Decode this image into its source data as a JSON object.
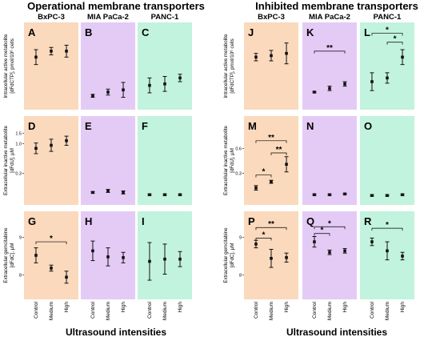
{
  "colors": {
    "bxpc3": "#fbd9bd",
    "mia": "#e4cbf5",
    "panc1": "#c2f3de",
    "point": "#111111"
  },
  "figure_titles": [
    "Operational membrane transporters",
    "Inhibited membrane transporters"
  ],
  "cell_lines": [
    "BxPC-3",
    "MIA PaCa-2",
    "PANC-1"
  ],
  "x_categories": [
    "Control",
    "Medium",
    "High"
  ],
  "x_title": "Ultrasound intensities",
  "row_labels": {
    "tp": {
      "l1": "Intracellular active metabolite",
      "l2": "[dFdCTP], pmol/10⁶ cells"
    },
    "u": {
      "l1": "Extracellular inactive metabolite",
      "l2": "[dFdU], µM"
    },
    "c": {
      "l1": "Extracellular gemcitabine",
      "l2": "[dFdC], µM"
    }
  },
  "chart_data": [
    {
      "group": "Operational membrane transporters",
      "rows": [
        {
          "key": "tp",
          "ticks": [],
          "panels": [
            {
              "letter": "A",
              "line": "BxPC-3",
              "type": "scatter",
              "values": [
                0.62,
                0.7,
                0.7
              ],
              "err_low": [
                0.1,
                0.05,
                0.08
              ],
              "err_high": [
                0.1,
                0.05,
                0.08
              ],
              "sig": []
            },
            {
              "letter": "B",
              "line": "MIA PaCa-2",
              "type": "scatter",
              "values": [
                0.1,
                0.15,
                0.18
              ],
              "err_low": [
                0.02,
                0.04,
                0.1
              ],
              "err_high": [
                0.02,
                0.04,
                0.1
              ],
              "sig": []
            },
            {
              "letter": "C",
              "line": "PANC-1",
              "type": "scatter",
              "values": [
                0.24,
                0.26,
                0.34
              ],
              "err_low": [
                0.1,
                0.1,
                0.05
              ],
              "err_high": [
                0.1,
                0.1,
                0.05
              ],
              "sig": []
            }
          ]
        },
        {
          "key": "u",
          "ticks": [
            {
              "v": 0.86,
              "label": "1.5"
            },
            {
              "v": 0.72,
              "label": "1.0"
            },
            {
              "v": 0.33,
              "label": "0.3"
            }
          ],
          "panels": [
            {
              "letter": "D",
              "line": "BxPC-3",
              "type": "scatter",
              "values": [
                0.66,
                0.7,
                0.76
              ],
              "err_low": [
                0.07,
                0.08,
                0.06
              ],
              "err_high": [
                0.07,
                0.08,
                0.06
              ],
              "sig": []
            },
            {
              "letter": "E",
              "line": "MIA PaCa-2",
              "type": "scatter",
              "values": [
                0.08,
                0.1,
                0.08
              ],
              "err_low": [
                0.01,
                0.02,
                0.02
              ],
              "err_high": [
                0.01,
                0.02,
                0.02
              ],
              "sig": []
            },
            {
              "letter": "F",
              "line": "PANC-1",
              "type": "scatter",
              "values": [
                0.05,
                0.05,
                0.05
              ],
              "err_low": [
                0.01,
                0.01,
                0.01
              ],
              "err_high": [
                0.01,
                0.01,
                0.01
              ],
              "sig": []
            }
          ]
        },
        {
          "key": "c",
          "ticks": [
            {
              "v": 0.74,
              "label": "9"
            },
            {
              "v": 0.24,
              "label": "8"
            }
          ],
          "panels": [
            {
              "letter": "G",
              "line": "BxPC-3",
              "type": "scatter",
              "values": [
                0.5,
                0.33,
                0.21
              ],
              "err_low": [
                0.1,
                0.04,
                0.08
              ],
              "err_high": [
                0.1,
                0.04,
                0.08
              ],
              "sig": [
                {
                  "a": 0,
                  "b": 2,
                  "label": "*",
                  "y": 0.68
                }
              ]
            },
            {
              "letter": "H",
              "line": "MIA PaCa-2",
              "type": "scatter",
              "values": [
                0.56,
                0.48,
                0.47
              ],
              "err_low": [
                0.13,
                0.12,
                0.07
              ],
              "err_high": [
                0.13,
                0.12,
                0.07
              ],
              "sig": []
            },
            {
              "letter": "I",
              "line": "PANC-1",
              "type": "scatter",
              "values": [
                0.42,
                0.45,
                0.45
              ],
              "err_low": [
                0.25,
                0.2,
                0.1
              ],
              "err_high": [
                0.25,
                0.2,
                0.1
              ],
              "sig": []
            }
          ]
        }
      ]
    },
    {
      "group": "Inhibited membrane transporters",
      "rows": [
        {
          "key": "tp",
          "ticks": [],
          "panels": [
            {
              "letter": "J",
              "line": "BxPC-3",
              "type": "scatter",
              "values": [
                0.62,
                0.64,
                0.67
              ],
              "err_low": [
                0.05,
                0.07,
                0.14
              ],
              "err_high": [
                0.05,
                0.07,
                0.14
              ],
              "sig": []
            },
            {
              "letter": "K",
              "line": "MIA PaCa-2",
              "type": "scatter",
              "values": [
                0.15,
                0.2,
                0.26
              ],
              "err_low": [
                0.01,
                0.03,
                0.03
              ],
              "err_high": [
                0.01,
                0.03,
                0.03
              ],
              "sig": [
                {
                  "a": 0,
                  "b": 2,
                  "label": "**",
                  "y": 0.7
                }
              ]
            },
            {
              "letter": "L",
              "line": "PANC-1",
              "type": "scatter",
              "values": [
                0.29,
                0.34,
                0.62
              ],
              "err_low": [
                0.12,
                0.07,
                0.1
              ],
              "err_high": [
                0.12,
                0.07,
                0.1
              ],
              "sig": [
                {
                  "a": 0,
                  "b": 2,
                  "label": "*",
                  "y": 0.94
                },
                {
                  "a": 1,
                  "b": 2,
                  "label": "*",
                  "y": 0.82
                }
              ]
            }
          ]
        },
        {
          "key": "u",
          "ticks": [
            {
              "v": 0.66,
              "label": "0.6"
            },
            {
              "v": 0.33,
              "label": "0.3"
            }
          ],
          "panels": [
            {
              "letter": "M",
              "line": "BxPC-3",
              "type": "scatter",
              "values": [
                0.14,
                0.22,
                0.45
              ],
              "err_low": [
                0.03,
                0.02,
                0.1
              ],
              "err_high": [
                0.03,
                0.02,
                0.1
              ],
              "sig": [
                {
                  "a": 0,
                  "b": 1,
                  "label": "*",
                  "y": 0.31
                },
                {
                  "a": 1,
                  "b": 2,
                  "label": "**",
                  "y": 0.6
                },
                {
                  "a": 0,
                  "b": 2,
                  "label": "**",
                  "y": 0.76
                }
              ]
            },
            {
              "letter": "N",
              "line": "MIA PaCa-2",
              "type": "scatter",
              "values": [
                0.05,
                0.05,
                0.06
              ],
              "err_low": [
                0.01,
                0.01,
                0.01
              ],
              "err_high": [
                0.01,
                0.01,
                0.01
              ],
              "sig": []
            },
            {
              "letter": "O",
              "line": "PANC-1",
              "type": "scatter",
              "values": [
                0.04,
                0.04,
                0.05
              ],
              "err_low": [
                0.01,
                0.01,
                0.01
              ],
              "err_high": [
                0.01,
                0.01,
                0.01
              ],
              "sig": []
            }
          ]
        },
        {
          "key": "c",
          "ticks": [
            {
              "v": 0.74,
              "label": "9"
            },
            {
              "v": 0.24,
              "label": "8"
            }
          ],
          "panels": [
            {
              "letter": "P",
              "line": "BxPC-3",
              "type": "scatter",
              "values": [
                0.65,
                0.46,
                0.47
              ],
              "err_low": [
                0.05,
                0.12,
                0.06
              ],
              "err_high": [
                0.05,
                0.12,
                0.06
              ],
              "sig": [
                {
                  "a": 0,
                  "b": 1,
                  "label": "*",
                  "y": 0.73
                },
                {
                  "a": 0,
                  "b": 2,
                  "label": "**",
                  "y": 0.87
                }
              ]
            },
            {
              "letter": "Q",
              "line": "MIA PaCa-2",
              "type": "scatter",
              "values": [
                0.68,
                0.54,
                0.56
              ],
              "err_low": [
                0.07,
                0.03,
                0.03
              ],
              "err_high": [
                0.07,
                0.03,
                0.03
              ],
              "sig": [
                {
                  "a": 0,
                  "b": 1,
                  "label": "*",
                  "y": 0.79
                },
                {
                  "a": 0,
                  "b": 2,
                  "label": "*",
                  "y": 0.88
                }
              ]
            },
            {
              "letter": "R",
              "line": "PANC-1",
              "type": "scatter",
              "values": [
                0.68,
                0.56,
                0.49
              ],
              "err_low": [
                0.05,
                0.12,
                0.05
              ],
              "err_high": [
                0.05,
                0.12,
                0.05
              ],
              "sig": [
                {
                  "a": 0,
                  "b": 2,
                  "label": "*",
                  "y": 0.86
                }
              ]
            }
          ]
        }
      ]
    }
  ]
}
